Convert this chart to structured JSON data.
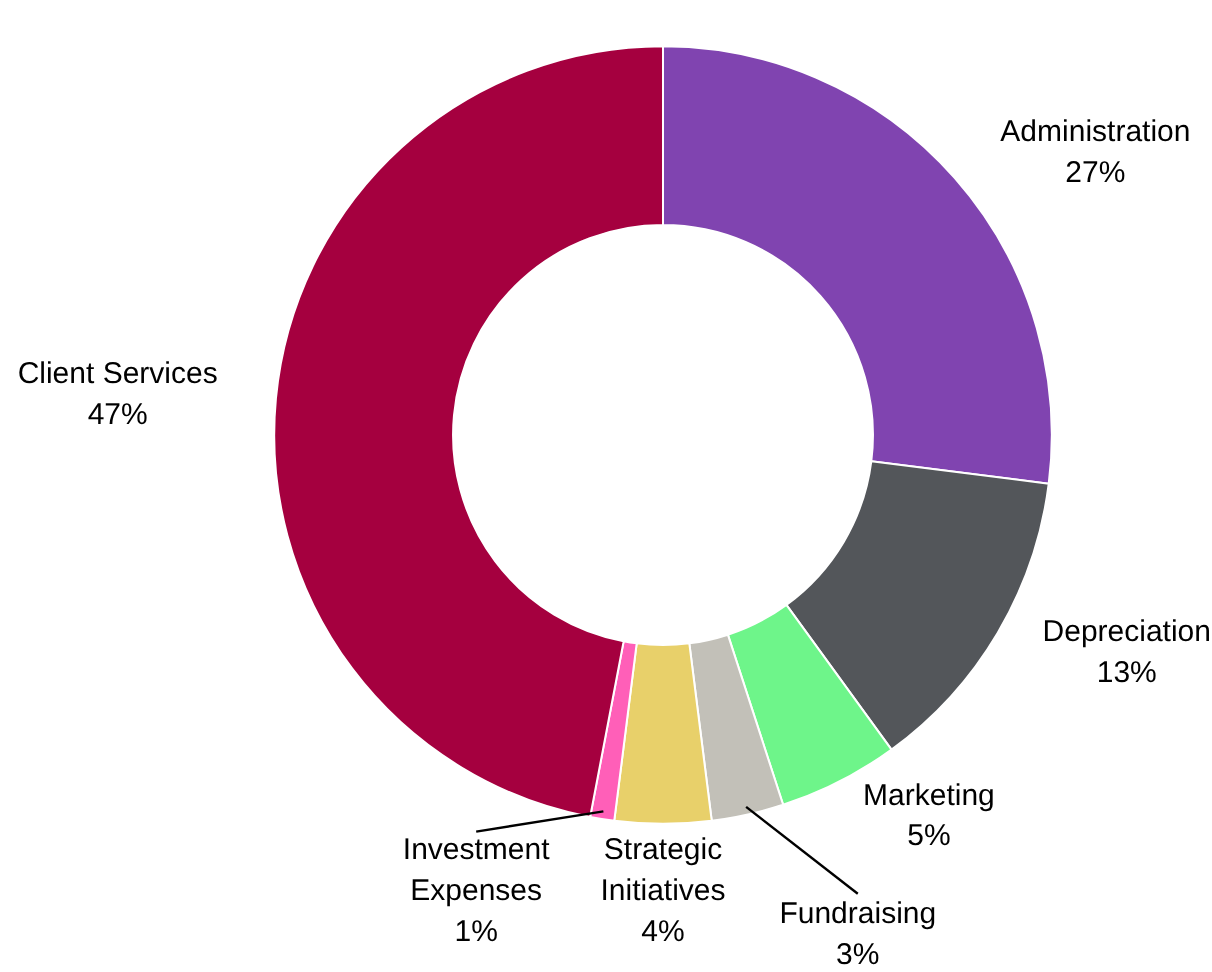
{
  "chart_data": {
    "type": "donut",
    "categories": [
      "Administration",
      "Depreciation",
      "Marketing",
      "Fundraising",
      "Strategic Initiatives",
      "Investment Expenses",
      "Client Services"
    ],
    "values": [
      27,
      13,
      5,
      3,
      4,
      1,
      47
    ],
    "value_labels": [
      "27%",
      "13%",
      "5%",
      "3%",
      "4%",
      "1%",
      "47%"
    ],
    "colors": [
      "#8044b0",
      "#53565a",
      "#6ef58a",
      "#c2c0b8",
      "#e8d06a",
      "#ff5fb8",
      "#a5003f"
    ]
  }
}
